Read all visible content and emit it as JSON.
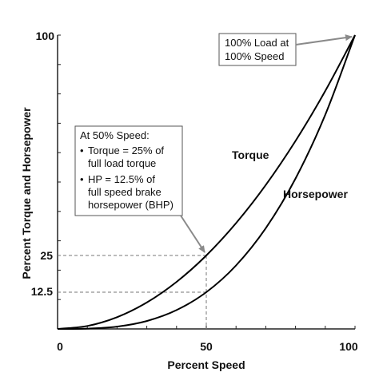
{
  "chart_data": {
    "type": "line",
    "xlabel": "Percent Speed",
    "ylabel": "Percent Torque and Horsepower",
    "xlim": [
      0,
      100
    ],
    "ylim": [
      0,
      100
    ],
    "x_ticks": [
      "0",
      "50",
      "100"
    ],
    "y_ticks": [
      "12.5",
      "25",
      "100"
    ],
    "series": [
      {
        "name": "Torque",
        "x": [
          0,
          10,
          20,
          30,
          40,
          50,
          60,
          70,
          80,
          90,
          100
        ],
        "y": [
          0,
          1,
          4,
          9,
          16,
          25,
          36,
          49,
          64,
          81,
          100
        ]
      },
      {
        "name": "Horsepower",
        "x": [
          0,
          10,
          20,
          30,
          40,
          50,
          60,
          70,
          80,
          90,
          100
        ],
        "y": [
          0,
          0.1,
          0.8,
          2.7,
          6.4,
          12.5,
          21.6,
          34.3,
          51.2,
          72.9,
          100
        ]
      }
    ],
    "reference_lines": [
      {
        "x": 50,
        "y": 25
      },
      {
        "x": 50,
        "y": 12.5
      }
    ],
    "annotations": {
      "full_load": {
        "lines": [
          "100% Load at",
          "100% Speed"
        ],
        "point": {
          "x": 100,
          "y": 100
        }
      },
      "half_speed": {
        "heading": "At 50% Speed:",
        "bullet": "•",
        "items": [
          [
            "Torque = 25% of",
            "full load torque"
          ],
          [
            "HP = 12.5% of",
            "full speed brake",
            "horsepower (BHP)"
          ]
        ],
        "point": {
          "x": 50,
          "y": 25
        }
      }
    },
    "colors": {
      "curve": "#000000",
      "axis": "#222222",
      "reference": "#777777",
      "arrow": "#8a8a8a",
      "box_border": "#555555"
    }
  }
}
